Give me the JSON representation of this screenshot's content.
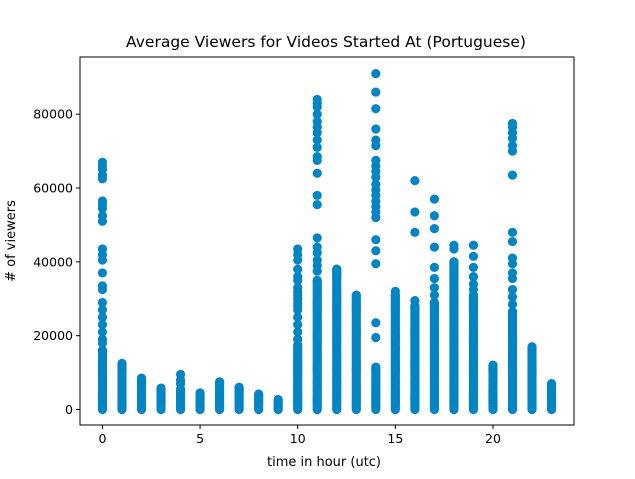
{
  "chart_data": {
    "type": "scatter",
    "title": "Average Viewers for Videos Started At (Portuguese)",
    "xlabel": "time in hour (utc)",
    "ylabel": "# of viewers",
    "xlim": [
      -1.15,
      24.15
    ],
    "ylim": [
      -4200,
      95500
    ],
    "xticks": [
      0,
      5,
      10,
      15,
      20
    ],
    "yticks": [
      0,
      20000,
      40000,
      60000,
      80000
    ],
    "grid": false,
    "marker_color": "#0485c3",
    "columns": [
      {
        "x": 0,
        "dense_max": 16000,
        "outliers": [
          67000,
          66000,
          65000,
          63500,
          62500,
          56500,
          55500,
          54500,
          52500,
          51000,
          43500,
          42000,
          40500,
          37000,
          33500,
          32500,
          29000,
          27000,
          25000,
          23000,
          21000,
          19000,
          18000
        ]
      },
      {
        "x": 1,
        "dense_max": 12500,
        "outliers": []
      },
      {
        "x": 2,
        "dense_max": 8500,
        "outliers": []
      },
      {
        "x": 3,
        "dense_max": 5800,
        "outliers": []
      },
      {
        "x": 4,
        "dense_max": 5500,
        "outliers": [
          9500,
          8000,
          7000
        ]
      },
      {
        "x": 5,
        "dense_max": 4500,
        "outliers": []
      },
      {
        "x": 6,
        "dense_max": 7500,
        "outliers": []
      },
      {
        "x": 7,
        "dense_max": 6000,
        "outliers": []
      },
      {
        "x": 8,
        "dense_max": 4200,
        "outliers": []
      },
      {
        "x": 9,
        "dense_max": 2700,
        "outliers": []
      },
      {
        "x": 10,
        "dense_max": 17500,
        "outliers": [
          43500,
          42000,
          40500,
          38000,
          36000,
          35000,
          33000,
          32000,
          31000,
          30000,
          29000,
          28000,
          27000,
          25000,
          23000,
          21000,
          19000
        ]
      },
      {
        "x": 11,
        "dense_max": 35000,
        "outliers": [
          84000,
          83000,
          82000,
          80000,
          78000,
          76500,
          75000,
          73000,
          71000,
          68500,
          67500,
          64000,
          58000,
          55500,
          46500,
          44000,
          42500,
          40500,
          39000,
          37500
        ]
      },
      {
        "x": 12,
        "dense_max": 38000,
        "outliers": [
          37500,
          36500
        ]
      },
      {
        "x": 13,
        "dense_max": 31000,
        "outliers": []
      },
      {
        "x": 14,
        "dense_max": 11500,
        "outliers": [
          91000,
          86000,
          81500,
          76000,
          73000,
          71500,
          67500,
          66000,
          64500,
          63000,
          61000,
          59500,
          58000,
          56500,
          55000,
          53500,
          52000,
          46000,
          43000,
          39500,
          23500,
          19500
        ]
      },
      {
        "x": 15,
        "dense_max": 31000,
        "outliers": [
          32000,
          16500
        ]
      },
      {
        "x": 16,
        "dense_max": 28000,
        "outliers": [
          62000,
          53500,
          48000,
          29500
        ]
      },
      {
        "x": 17,
        "dense_max": 29000,
        "outliers": [
          57000,
          52500,
          49000,
          44000,
          38500,
          35500,
          33000,
          31000,
          15500
        ]
      },
      {
        "x": 18,
        "dense_max": 40000,
        "outliers": [
          44500,
          43500
        ]
      },
      {
        "x": 19,
        "dense_max": 31000,
        "outliers": [
          44500,
          41500,
          38500,
          36000,
          34000,
          32500
        ]
      },
      {
        "x": 20,
        "dense_max": 12000,
        "outliers": []
      },
      {
        "x": 21,
        "dense_max": 26500,
        "outliers": [
          77500,
          76500,
          75000,
          73500,
          71500,
          70000,
          63500,
          48000,
          45500,
          41000,
          39500,
          37000,
          35500,
          32500,
          30500,
          28500
        ]
      },
      {
        "x": 22,
        "dense_max": 17000,
        "outliers": []
      },
      {
        "x": 23,
        "dense_max": 7000,
        "outliers": []
      }
    ]
  }
}
